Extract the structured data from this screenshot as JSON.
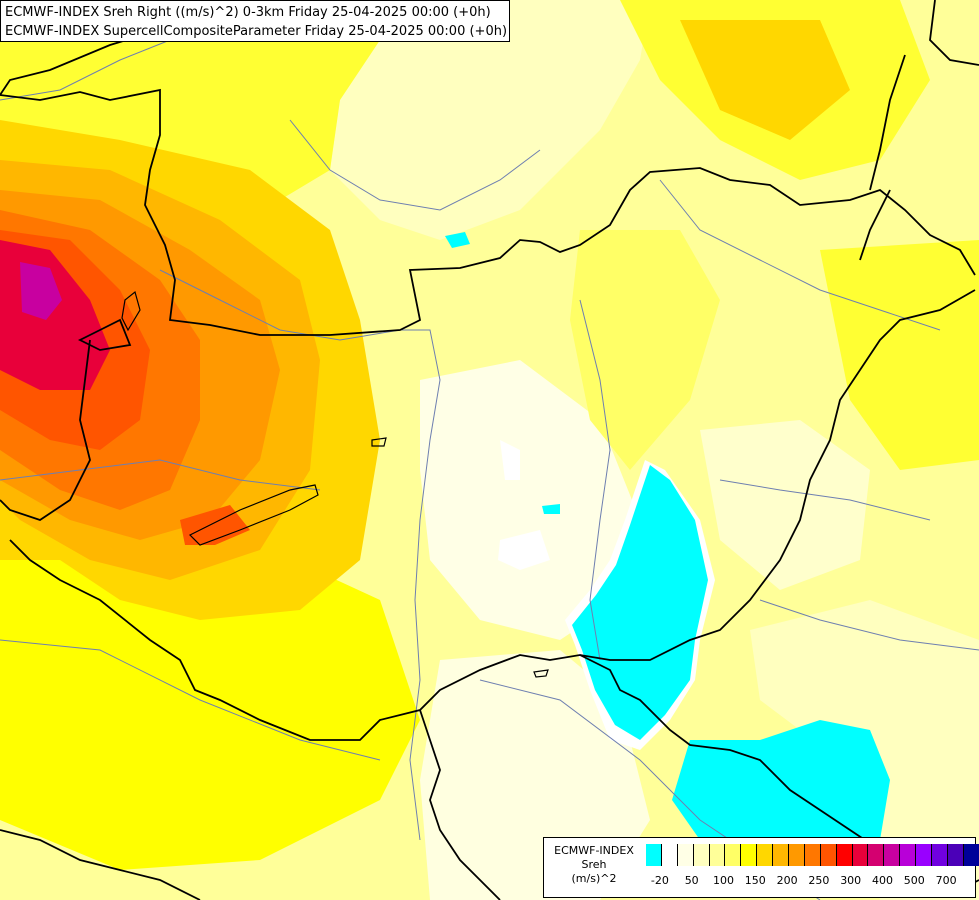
{
  "titles": {
    "line1": "ECMWF-INDEX Sreh Right ((m/s)^2) 0-3km Friday 25-04-2025 00:00 (+0h)",
    "line2": "ECMWF-INDEX SupercellCompositeParameter Friday 25-04-2025 00:00 (+0h)"
  },
  "legend": {
    "model": "ECMWF-INDEX",
    "parameter": "Sreh",
    "unit": "(m/s)^2",
    "colors": [
      "#00ffff",
      "#ffffff",
      "#ffffe6",
      "#ffffbf",
      "#ffff99",
      "#ffff66",
      "#ffff00",
      "#ffd700",
      "#ffb700",
      "#ff9900",
      "#ff7700",
      "#ff5500",
      "#ff0000",
      "#e8003a",
      "#d40070",
      "#c800a0",
      "#b800d8",
      "#9900ff",
      "#7000e0",
      "#4b00b8",
      "#000099"
    ],
    "tick_labels": [
      "-20",
      "50",
      "100",
      "150",
      "200",
      "250",
      "300",
      "400",
      "500",
      "700"
    ]
  },
  "map_colors": {
    "background": "#ffff99",
    "border": "#000000",
    "river": "#6e7fb0"
  }
}
